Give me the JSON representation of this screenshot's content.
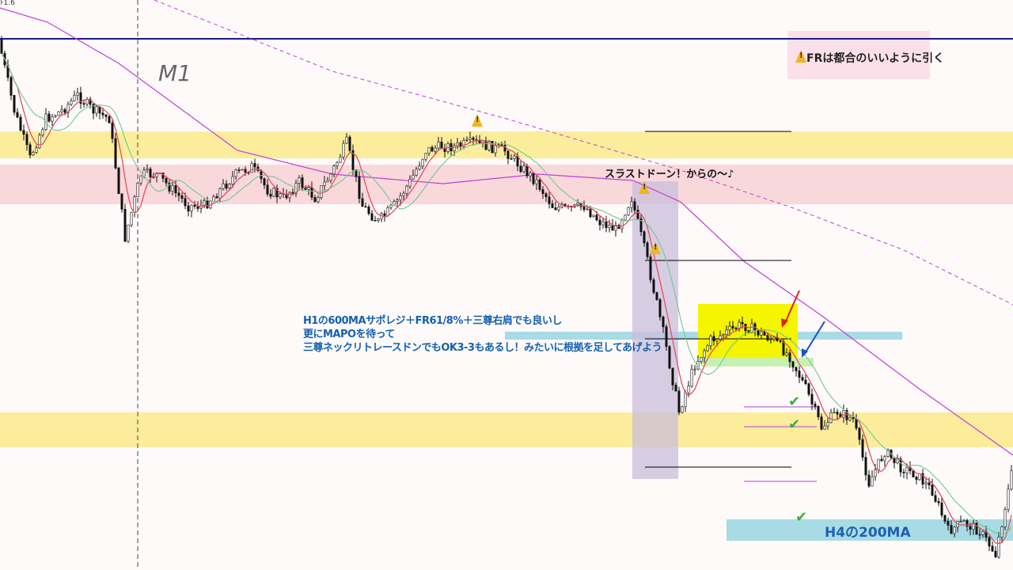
{
  "timeframe": "M1",
  "top_left_label": "ﾄ1.6",
  "colors": {
    "background": "#fefafa",
    "yellow_zone": "#fbea8c",
    "pink_zone": "#f9d8dc",
    "cyan_zone": "#a8dbe4",
    "highlight_box": "#f5f500",
    "purple_box": "#c9bedb",
    "horizontal_line": "#1a1a8c",
    "ma_fast": "#e05060",
    "ma_mid": "#70c890",
    "ma_slow": "#c040d0",
    "note_text": "#1560b0"
  },
  "annotations": {
    "fr_note": "FRは都合のいいように引く",
    "thrust": "スラストドーン！からの〜♪",
    "main_note": [
      "H1の600MAサポレジ＋FR61/8%＋三尊右肩でも良いし",
      "更にMAPOを待って",
      "三尊ネックリトレースドンでもOK3-3もあるし！みたいに根拠を足してあげよう"
    ],
    "h4_label": "H4の200MA"
  },
  "icons": {
    "warning": "warning-icon",
    "check": "checkmark-icon",
    "red_arrow": "arrow-down-left-icon",
    "blue_arrow": "arrow-down-left-icon"
  },
  "chart_data": {
    "type": "candlestick",
    "title": "",
    "xlabel": "",
    "ylabel": "",
    "grid": false,
    "legend": "none",
    "close_approx": [
      93.1,
      80.6,
      72.2,
      79.2,
      80.6,
      83.3,
      80.6,
      79.2,
      58.3,
      69.4,
      69.4,
      66.7,
      63.9,
      63.9,
      66.7,
      69.4,
      70.8,
      66.7,
      65.3,
      68.1,
      65.3,
      69.4,
      75,
      63.9,
      61.1,
      63.9,
      68.1,
      73.6,
      74.3,
      74.3,
      75,
      74.3,
      73.6,
      70.8,
      68.1,
      63.9,
      63.2,
      63.9,
      61.1,
      59.7,
      65.3,
      54.2,
      41.7,
      27.8,
      36.1,
      40.3,
      41.7,
      43.1,
      41.7,
      40.3,
      37.5,
      31.9,
      25,
      27.8,
      26.4,
      15.3,
      20.8,
      18.1,
      16.7,
      13.9,
      6.9,
      8.3,
      6.9,
      2.8,
      16.7
    ]
  }
}
